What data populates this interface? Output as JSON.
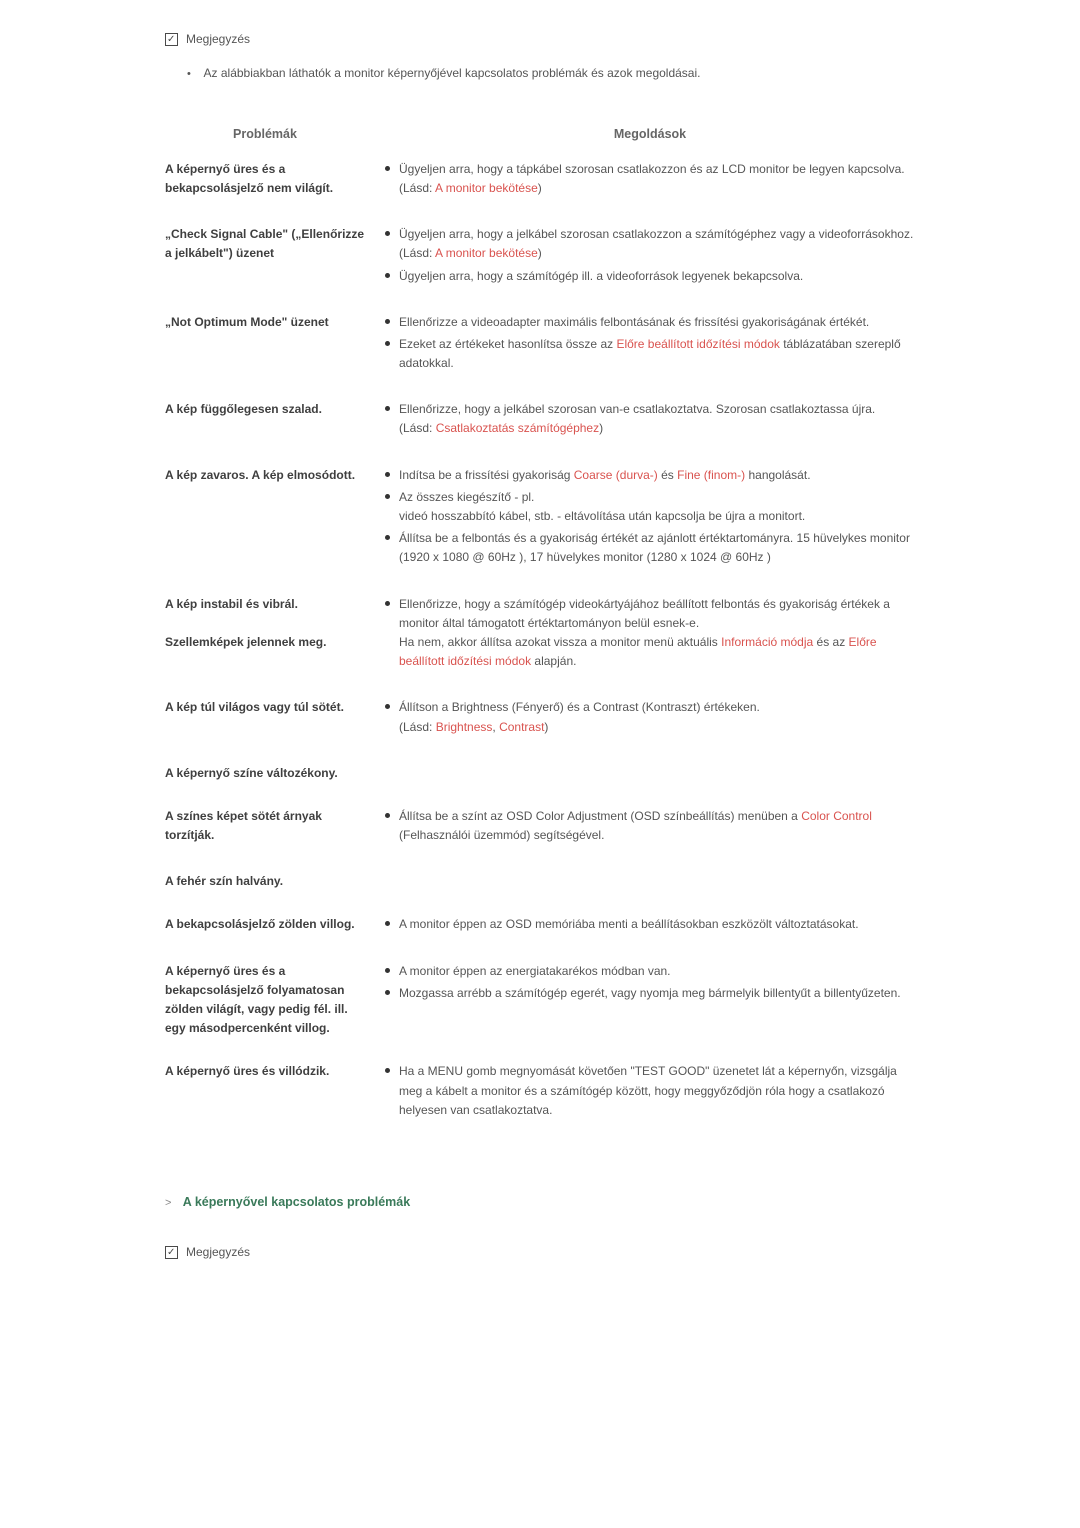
{
  "note_label_top": "Megjegyzés",
  "note_subtext": "Az alábbiakban láthatók a monitor képernyőjével kapcsolatos problémák és azok megoldásai.",
  "table": {
    "header_problems": "Problémák",
    "header_solutions": "Megoldások",
    "rows": [
      {
        "problem": "A képernyő üres és a bekapcsolásjelző nem világít.",
        "solutions": [
          {
            "parts": [
              {
                "t": "text",
                "v": "Ügyeljen arra, hogy a tápkábel szorosan csatlakozzon és az LCD monitor be legyen kapcsolva."
              },
              {
                "t": "br"
              },
              {
                "t": "text",
                "v": "(Lásd: "
              },
              {
                "t": "link",
                "v": "A monitor bekötése"
              },
              {
                "t": "text",
                "v": ")"
              }
            ]
          }
        ]
      },
      {
        "problem": "„Check Signal Cable\" („Ellenőrizze a jelkábelt\") üzenet",
        "solutions": [
          {
            "parts": [
              {
                "t": "text",
                "v": "Ügyeljen arra, hogy a jelkábel szorosan csatlakozzon a számítógéphez vagy a videoforrásokhoz."
              },
              {
                "t": "br"
              },
              {
                "t": "text",
                "v": "(Lásd: "
              },
              {
                "t": "link",
                "v": "A monitor bekötése"
              },
              {
                "t": "text",
                "v": ")"
              }
            ]
          },
          {
            "parts": [
              {
                "t": "text",
                "v": "Ügyeljen arra, hogy a számítógép ill. a videoforrások legyenek bekapcsolva."
              }
            ]
          }
        ]
      },
      {
        "problem": "„Not Optimum Mode\" üzenet",
        "solutions": [
          {
            "parts": [
              {
                "t": "text",
                "v": "Ellenőrizze a videoadapter maximális felbontásának és frissítési gyakoriságának értékét."
              }
            ]
          },
          {
            "parts": [
              {
                "t": "text",
                "v": "Ezeket az értékeket hasonlítsa össze az "
              },
              {
                "t": "link",
                "v": "Előre beállított időzítési módok"
              },
              {
                "t": "text",
                "v": " táblázatában szereplő adatokkal."
              }
            ]
          }
        ]
      },
      {
        "problem": "A kép függőlegesen szalad.",
        "solutions": [
          {
            "parts": [
              {
                "t": "text",
                "v": "Ellenőrizze, hogy a jelkábel szorosan van-e csatlakoztatva. Szorosan csatlakoztassa újra."
              },
              {
                "t": "br"
              },
              {
                "t": "text",
                "v": "(Lásd: "
              },
              {
                "t": "link",
                "v": "Csatlakoztatás számítógéphez"
              },
              {
                "t": "text",
                "v": ")"
              }
            ]
          }
        ]
      },
      {
        "problem": "A kép zavaros. A kép elmosódott.",
        "solutions": [
          {
            "parts": [
              {
                "t": "text",
                "v": "Indítsa be a frissítési gyakoriság "
              },
              {
                "t": "link",
                "v": "Coarse (durva-)"
              },
              {
                "t": "text",
                "v": " és "
              },
              {
                "t": "link",
                "v": "Fine (finom-)"
              },
              {
                "t": "text",
                "v": " hangolását."
              }
            ]
          },
          {
            "parts": [
              {
                "t": "text",
                "v": "Az összes kiegészítő - pl."
              },
              {
                "t": "br"
              },
              {
                "t": "text",
                "v": "videó hosszabbító kábel, stb. - eltávolítása után kapcsolja be újra a monitort."
              }
            ]
          },
          {
            "parts": [
              {
                "t": "text",
                "v": "Állítsa be a felbontás és a gyakoriság értékét az ajánlott értéktartományra. 15 hüvelykes monitor (1920 x 1080 @ 60Hz ), 17 hüvelykes monitor (1280 x 1024 @ 60Hz )"
              }
            ]
          }
        ]
      },
      {
        "problem": "A kép instabil és vibrál.\n\nSzellemképek jelennek meg.",
        "problem_lines": [
          "A kép instabil és vibrál.",
          "",
          "Szellemképek jelennek meg."
        ],
        "solutions": [
          {
            "parts": [
              {
                "t": "text",
                "v": "Ellenőrizze, hogy a számítógép videokártyájához beállított felbontás és gyakoriság értékek a monitor által támogatott értéktartományon belül esnek-e."
              },
              {
                "t": "br"
              },
              {
                "t": "text",
                "v": "Ha nem, akkor állítsa azokat vissza a monitor menü aktuális "
              },
              {
                "t": "link",
                "v": "Információ módja"
              },
              {
                "t": "text",
                "v": " és az "
              },
              {
                "t": "link",
                "v": "Előre beállított időzítési módok"
              },
              {
                "t": "text",
                "v": " alapján."
              }
            ]
          }
        ]
      },
      {
        "problem": "A kép túl világos vagy túl sötét.",
        "solutions": [
          {
            "parts": [
              {
                "t": "text",
                "v": "Állítson a Brightness (Fényerő) és a Contrast (Kontraszt) értékeken."
              },
              {
                "t": "br"
              },
              {
                "t": "text",
                "v": "(Lásd: "
              },
              {
                "t": "link",
                "v": "Brightness"
              },
              {
                "t": "text",
                "v": ", "
              },
              {
                "t": "link",
                "v": "Contrast"
              },
              {
                "t": "text",
                "v": ")"
              }
            ]
          }
        ]
      },
      {
        "problem": "A képernyő színe változékony.",
        "solutions": []
      },
      {
        "problem": "A színes képet sötét árnyak torzítják.",
        "solutions": [
          {
            "parts": [
              {
                "t": "text",
                "v": "Állítsa be a színt az OSD Color Adjustment (OSD színbeállítás) menüben a "
              },
              {
                "t": "link",
                "v": "Color Control"
              },
              {
                "t": "text",
                "v": " (Felhasználói üzemmód) segítségével."
              }
            ]
          }
        ]
      },
      {
        "problem": "A fehér szín halvány.",
        "solutions": []
      },
      {
        "problem": "A bekapcsolásjelző zölden villog.",
        "solutions": [
          {
            "parts": [
              {
                "t": "text",
                "v": "A monitor éppen az OSD memóriába menti a beállításokban eszközölt változtatásokat."
              }
            ]
          }
        ]
      },
      {
        "problem": "A képernyő üres és a bekapcsolásjelző folyamatosan zölden világít, vagy pedig fél. ill. egy másodpercenként villog.",
        "solutions": [
          {
            "parts": [
              {
                "t": "text",
                "v": "A monitor éppen az energiatakarékos módban van."
              }
            ]
          },
          {
            "parts": [
              {
                "t": "text",
                "v": "Mozgassa arrébb a számítógép egerét, vagy nyomja meg bármelyik billentyűt a billentyűzeten."
              }
            ]
          }
        ]
      },
      {
        "problem": "A képernyő üres és villódzik.",
        "solutions": [
          {
            "parts": [
              {
                "t": "text",
                "v": "Ha a MENU gomb megnyomását követően \"TEST GOOD\" üzenetet lát a képernyőn, vizsgálja meg a kábelt a monitor és a számítógép között, hogy meggyőződjön róla hogy a csatlakozó helyesen van csatlakoztatva."
              }
            ]
          }
        ]
      }
    ]
  },
  "section_footer": "A képernyővel kapcsolatos problémák",
  "note_label_bottom": "Megjegyzés",
  "colors": {
    "text": "#4a4a4a",
    "bold": "#3f3f3f",
    "link": "#d9534f",
    "green": "#3a7a5a",
    "bg": "#ffffff"
  }
}
